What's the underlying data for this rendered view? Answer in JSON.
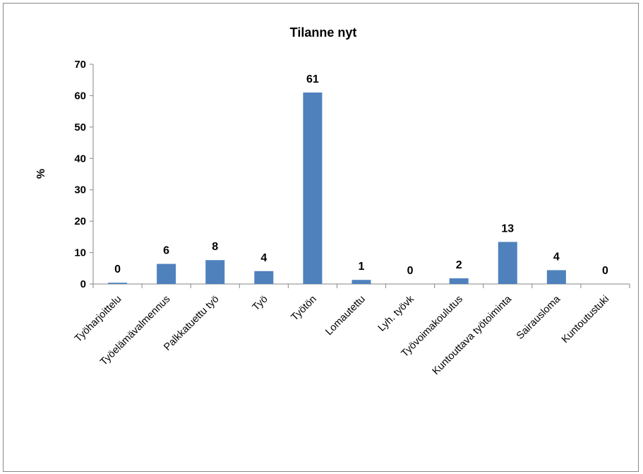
{
  "chart_data": {
    "type": "bar",
    "title": "Tilanne nyt",
    "ylabel": "%",
    "xlabel": "",
    "ylim": [
      0,
      70
    ],
    "yticks": [
      0,
      10,
      20,
      30,
      40,
      50,
      60,
      70
    ],
    "categories": [
      "Työharjoittelu",
      "Työelämävalmennus",
      "Palkkatuettu työ",
      "Työ",
      "Työtön",
      "Lomautettu",
      "Lyh. työvk",
      "Työvoimakoulutus",
      "Kuntouttava työtoiminta",
      "Sairausloma",
      "Kuntoutustuki"
    ],
    "values": [
      0.4,
      6.4,
      7.6,
      4.1,
      61,
      1.3,
      0,
      1.8,
      13.4,
      4.4,
      0
    ],
    "data_labels": [
      "0",
      "6",
      "8",
      "4",
      "61",
      "1",
      "0",
      "2",
      "13",
      "4",
      "0"
    ],
    "bar_color": "#4F81BD",
    "grid": false,
    "legend": "none"
  }
}
